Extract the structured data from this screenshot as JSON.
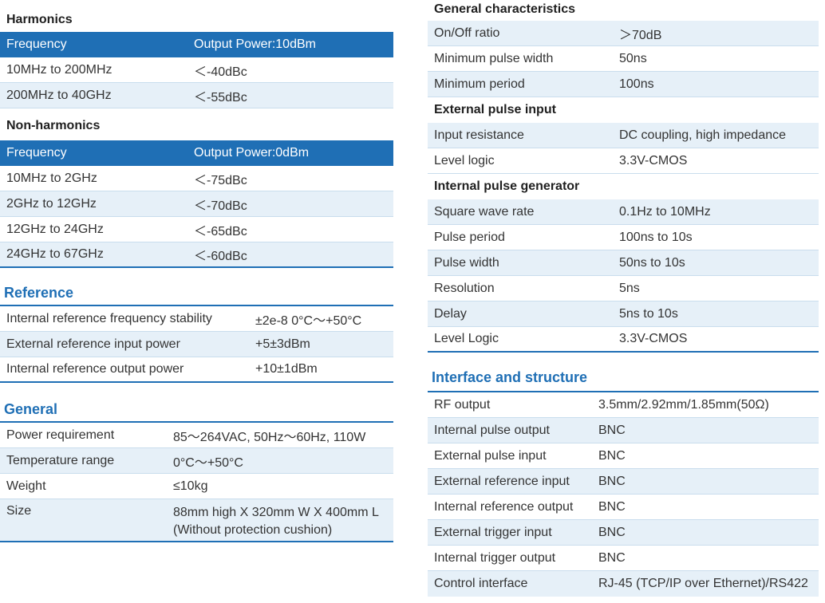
{
  "harmonics": {
    "title": "Harmonics",
    "header": [
      "Frequency",
      "Output Power:10dBm"
    ],
    "rows": [
      [
        "10MHz to 200MHz",
        "＜-40dBc"
      ],
      [
        "200MHz to 40GHz",
        "＜-55dBc"
      ]
    ]
  },
  "non_harmonics": {
    "title": "Non-harmonics",
    "header": [
      "Frequency",
      "Output Power:0dBm"
    ],
    "rows": [
      [
        "10MHz to 2GHz",
        "＜-75dBc"
      ],
      [
        "2GHz to 12GHz",
        "＜-70dBc"
      ],
      [
        "12GHz to 24GHz",
        "＜-65dBc"
      ],
      [
        "24GHz to 67GHz",
        "＜-60dBc"
      ]
    ]
  },
  "reference": {
    "title": "Reference",
    "rows": [
      [
        "Internal reference frequency stability",
        "±2e-8  0°C～+50°C"
      ],
      [
        "External reference input power",
        "+5±3dBm"
      ],
      [
        "Internal reference output power",
        "+10±1dBm"
      ]
    ]
  },
  "general": {
    "title": "General",
    "rows": [
      [
        "Power requirement",
        "85～264VAC, 50Hz～60Hz, 110W"
      ],
      [
        "Temperature range",
        "0°C～+50°C"
      ],
      [
        "Weight",
        "≤10kg"
      ]
    ],
    "size_label": "Size",
    "size_line1": "88mm high X 320mm W X 400mm L",
    "size_line2": "(Without protection cushion)"
  },
  "general_characteristics": {
    "title": "General characteristics",
    "rows": [
      [
        "On/Off ratio",
        "＞70dB"
      ],
      [
        "Minimum pulse width",
        "50ns"
      ],
      [
        "Minimum period",
        "100ns"
      ]
    ]
  },
  "external_pulse_input": {
    "title": "External pulse input",
    "rows": [
      [
        "Input resistance",
        "DC coupling, high impedance"
      ],
      [
        "Level logic",
        "3.3V-CMOS"
      ]
    ]
  },
  "internal_pulse_generator": {
    "title": "Internal pulse generator",
    "rows": [
      [
        "Square wave rate",
        "0.1Hz to 10MHz"
      ],
      [
        "Pulse period",
        "100ns to 10s"
      ],
      [
        "Pulse width",
        "50ns to 10s"
      ],
      [
        "Resolution",
        "5ns"
      ],
      [
        "Delay",
        "5ns to 10s"
      ],
      [
        "Level Logic",
        "3.3V-CMOS"
      ]
    ]
  },
  "interface": {
    "title": "Interface and structure",
    "rows": [
      [
        "RF output",
        "3.5mm/2.92mm/1.85mm(50Ω)"
      ],
      [
        "Internal pulse output",
        "BNC"
      ],
      [
        "External pulse input",
        "BNC"
      ],
      [
        "External reference input",
        "BNC"
      ],
      [
        "Internal reference output",
        "BNC"
      ],
      [
        "External trigger input",
        "BNC"
      ],
      [
        "Internal trigger output",
        "BNC"
      ],
      [
        "Control interface",
        "RJ-45 (TCP/IP over Ethernet)/RS422"
      ]
    ]
  },
  "colors": {
    "accent": "#1f6fb5",
    "row_alt": "#e6f0f8",
    "divider": "#c9dded"
  }
}
